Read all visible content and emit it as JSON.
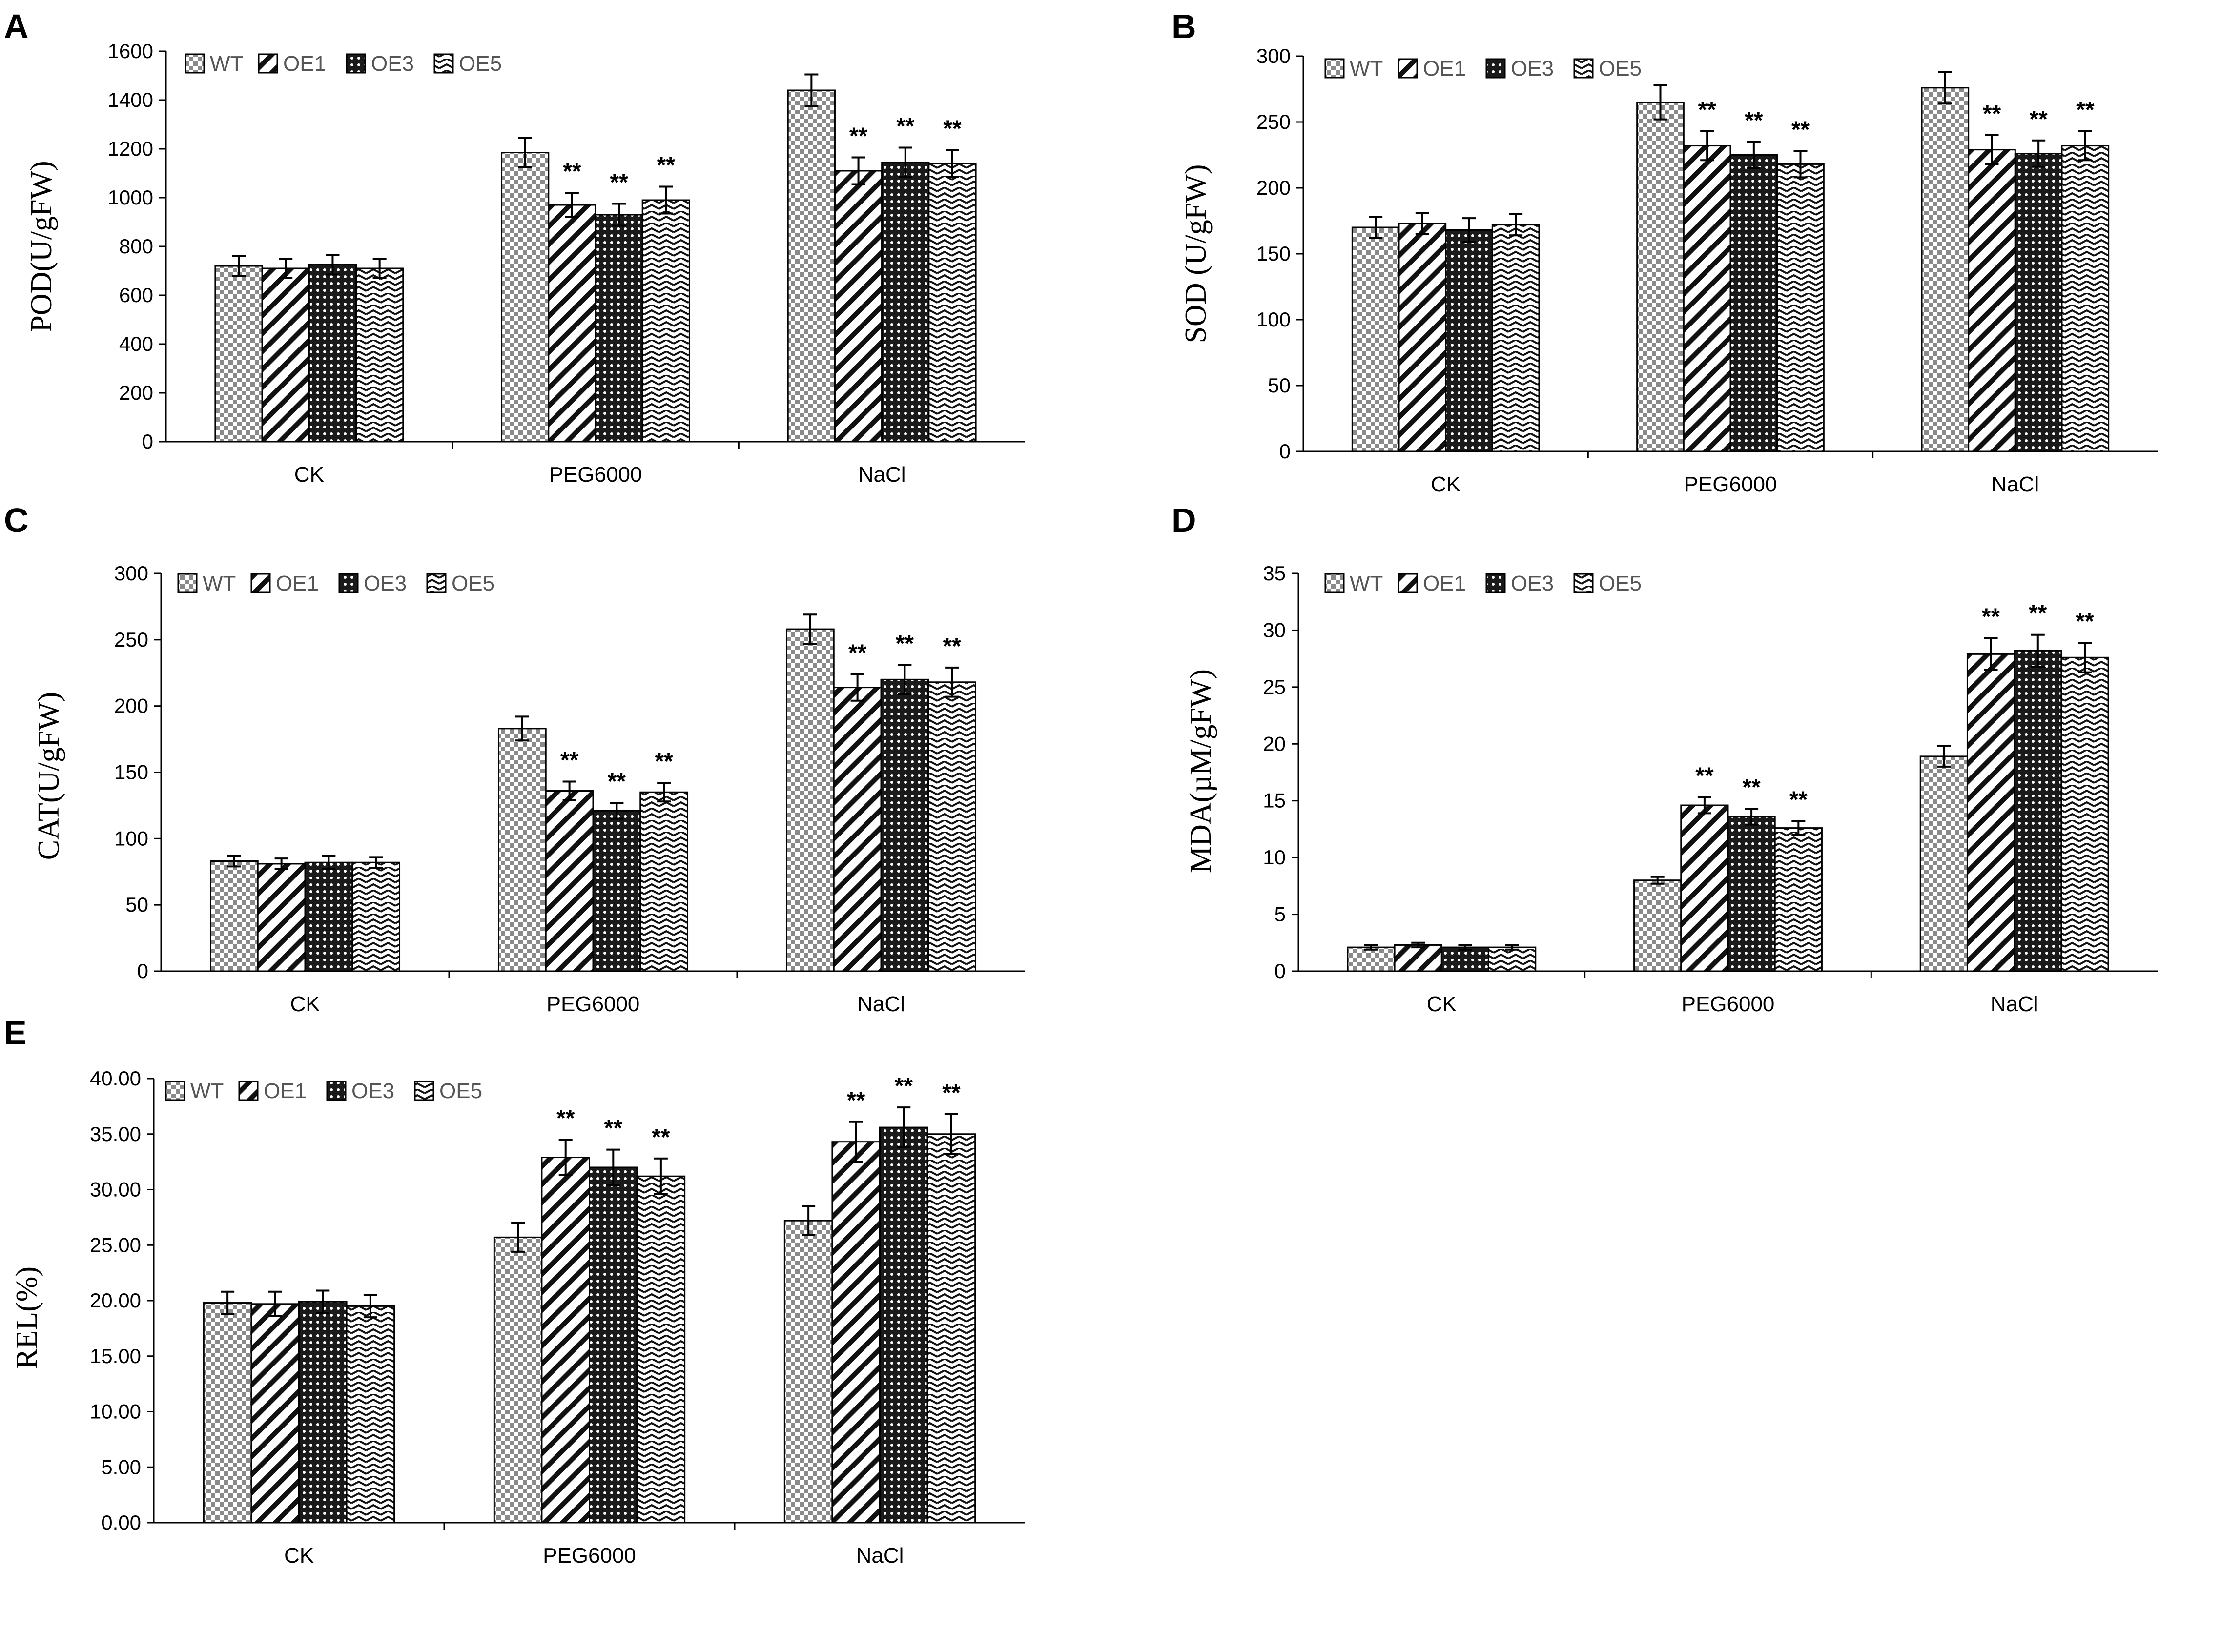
{
  "legend": [
    "WT",
    "OE1",
    "OE3",
    "OE5"
  ],
  "categories": [
    "CK",
    "PEG6000",
    "NaCl"
  ],
  "chart_data": [
    {
      "type": "bar",
      "panel": "A",
      "ylabel": "POD(U/gFW)",
      "ylim": [
        0,
        1600
      ],
      "yticks": [
        "0",
        "200",
        "400",
        "600",
        "800",
        "1000",
        "1200",
        "1400",
        "1600"
      ],
      "categories": [
        "CK",
        "PEG6000",
        "NaCl"
      ],
      "series": [
        {
          "name": "WT",
          "values": [
            720,
            1185,
            1440
          ],
          "errors": [
            40,
            60,
            65
          ]
        },
        {
          "name": "OE1",
          "values": [
            710,
            970,
            1110
          ],
          "errors": [
            40,
            50,
            55
          ]
        },
        {
          "name": "OE3",
          "values": [
            725,
            930,
            1145
          ],
          "errors": [
            40,
            45,
            60
          ]
        },
        {
          "name": "OE5",
          "values": [
            710,
            990,
            1140
          ],
          "errors": [
            40,
            55,
            55
          ]
        }
      ],
      "significance": [
        [
          "",
          "",
          "",
          ""
        ],
        [
          "",
          "**",
          "**",
          "**"
        ],
        [
          "",
          "**",
          "**",
          "**"
        ]
      ]
    },
    {
      "type": "bar",
      "panel": "B",
      "ylabel": "SOD (U/gFW)",
      "ylim": [
        0,
        300
      ],
      "yticks": [
        "0",
        "50",
        "100",
        "150",
        "200",
        "250",
        "300"
      ],
      "categories": [
        "CK",
        "PEG6000",
        "NaCl"
      ],
      "series": [
        {
          "name": "WT",
          "values": [
            170,
            265,
            276
          ],
          "errors": [
            8,
            13,
            12
          ]
        },
        {
          "name": "OE1",
          "values": [
            173,
            232,
            229
          ],
          "errors": [
            8,
            11,
            11
          ]
        },
        {
          "name": "OE3",
          "values": [
            168,
            225,
            226
          ],
          "errors": [
            9,
            10,
            10
          ]
        },
        {
          "name": "OE5",
          "values": [
            172,
            218,
            232
          ],
          "errors": [
            8,
            10,
            11
          ]
        }
      ],
      "significance": [
        [
          "",
          "",
          "",
          ""
        ],
        [
          "",
          "**",
          "**",
          "**"
        ],
        [
          "",
          "**",
          "**",
          "**"
        ]
      ]
    },
    {
      "type": "bar",
      "panel": "C",
      "ylabel": "CAT(U/gFW)",
      "ylim": [
        0,
        300
      ],
      "yticks": [
        "0",
        "50",
        "100",
        "150",
        "200",
        "250",
        "300"
      ],
      "categories": [
        "CK",
        "PEG6000",
        "NaCl"
      ],
      "series": [
        {
          "name": "WT",
          "values": [
            83,
            183,
            258
          ],
          "errors": [
            4,
            9,
            11
          ]
        },
        {
          "name": "OE1",
          "values": [
            81,
            136,
            214
          ],
          "errors": [
            4,
            7,
            10
          ]
        },
        {
          "name": "OE3",
          "values": [
            82,
            121,
            220
          ],
          "errors": [
            5,
            6,
            11
          ]
        },
        {
          "name": "OE5",
          "values": [
            82,
            135,
            218
          ],
          "errors": [
            4,
            7,
            11
          ]
        }
      ],
      "significance": [
        [
          "",
          "",
          "",
          ""
        ],
        [
          "",
          "**",
          "**",
          "**"
        ],
        [
          "",
          "**",
          "**",
          "**"
        ]
      ]
    },
    {
      "type": "bar",
      "panel": "D",
      "ylabel": "MDA(µM/gFW)",
      "ylim": [
        0,
        35
      ],
      "yticks": [
        "0",
        "5",
        "10",
        "15",
        "20",
        "25",
        "30",
        "35"
      ],
      "categories": [
        "CK",
        "PEG6000",
        "NaCl"
      ],
      "series": [
        {
          "name": "WT",
          "values": [
            2.1,
            8.0,
            18.9
          ],
          "errors": [
            0.2,
            0.3,
            0.9
          ]
        },
        {
          "name": "OE1",
          "values": [
            2.3,
            14.6,
            27.9
          ],
          "errors": [
            0.2,
            0.7,
            1.4
          ]
        },
        {
          "name": "OE3",
          "values": [
            2.1,
            13.6,
            28.2
          ],
          "errors": [
            0.2,
            0.7,
            1.4
          ]
        },
        {
          "name": "OE5",
          "values": [
            2.1,
            12.6,
            27.6
          ],
          "errors": [
            0.2,
            0.6,
            1.3
          ]
        }
      ],
      "significance": [
        [
          "",
          "",
          "",
          ""
        ],
        [
          "",
          "**",
          "**",
          "**"
        ],
        [
          "",
          "**",
          "**",
          "**"
        ]
      ]
    },
    {
      "type": "bar",
      "panel": "E",
      "ylabel": "REL(%)",
      "ylim": [
        0,
        40
      ],
      "yticks": [
        "0.00",
        "5.00",
        "10.00",
        "15.00",
        "20.00",
        "25.00",
        "30.00",
        "35.00",
        "40.00"
      ],
      "categories": [
        "CK",
        "PEG6000",
        "NaCl"
      ],
      "series": [
        {
          "name": "WT",
          "values": [
            19.8,
            25.7,
            27.2
          ],
          "errors": [
            1.0,
            1.3,
            1.3
          ]
        },
        {
          "name": "OE1",
          "values": [
            19.7,
            32.9,
            34.3
          ],
          "errors": [
            1.1,
            1.6,
            1.8
          ]
        },
        {
          "name": "OE3",
          "values": [
            19.9,
            32.0,
            35.6
          ],
          "errors": [
            1.0,
            1.6,
            1.8
          ]
        },
        {
          "name": "OE5",
          "values": [
            19.5,
            31.2,
            35.0
          ],
          "errors": [
            1.0,
            1.6,
            1.8
          ]
        }
      ],
      "significance": [
        [
          "",
          "",
          "",
          ""
        ],
        [
          "",
          "**",
          "**",
          "**"
        ],
        [
          "",
          "**",
          "**",
          "**"
        ]
      ]
    }
  ]
}
